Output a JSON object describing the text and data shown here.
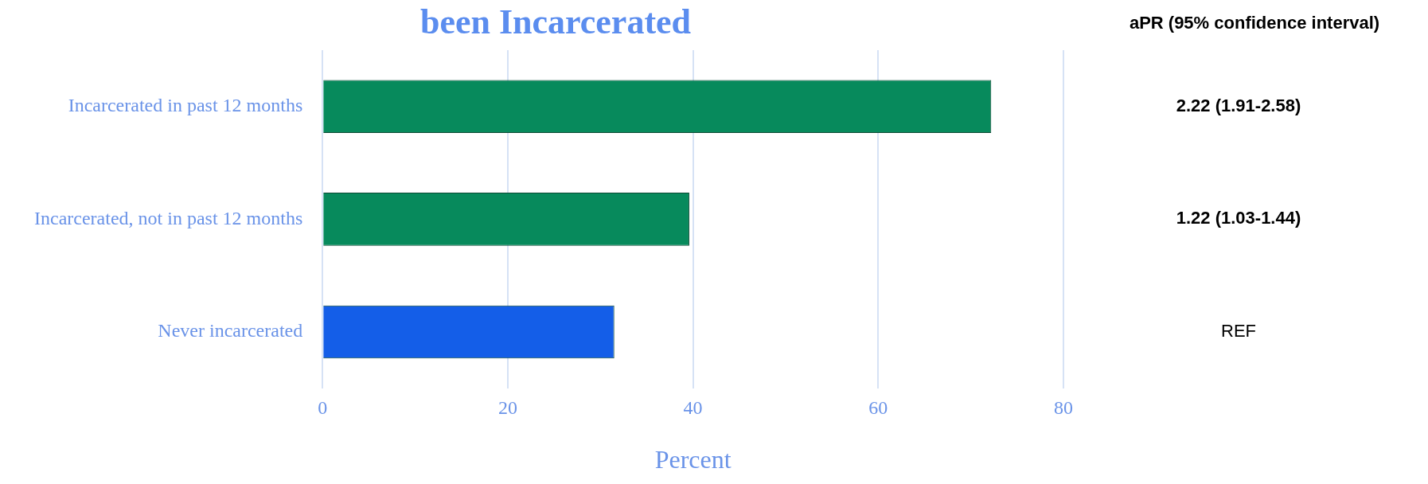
{
  "chart_data": {
    "type": "bar",
    "orientation": "horizontal",
    "title": "been Incarcerated",
    "xlabel": "Percent",
    "categories": [
      "Incarcerated in past 12 months",
      "Incarcerated, not in past 12 months",
      "Never incarcerated"
    ],
    "values": [
      72.2,
      39.6,
      31.5
    ],
    "colors": [
      "#078a5c",
      "#078a5c",
      "#145ee8"
    ],
    "xlim": [
      0,
      80
    ],
    "xticks": [
      0,
      20,
      40,
      60,
      80
    ],
    "grid": "x",
    "legend": false,
    "annotations": [
      "aPR (95% confidence interval)",
      "2.22 (1.91-2.58)",
      "1.22 (1.03-1.44)",
      "REF"
    ]
  }
}
